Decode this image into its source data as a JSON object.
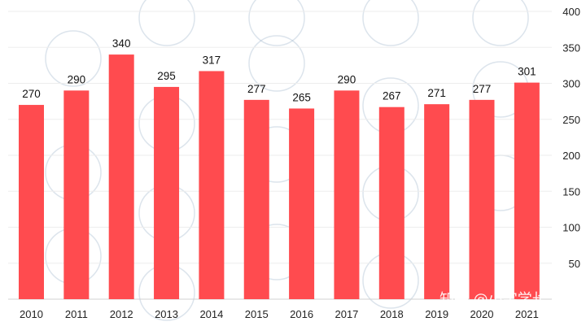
{
  "chart_data": {
    "type": "bar",
    "categories": [
      "2010",
      "2011",
      "2012",
      "2013",
      "2014",
      "2015",
      "2016",
      "2017",
      "2018",
      "2019",
      "2020",
      "2021"
    ],
    "values": [
      270,
      290,
      340,
      295,
      317,
      277,
      265,
      290,
      267,
      271,
      277,
      301
    ],
    "title": "",
    "xlabel": "",
    "ylabel": "",
    "ylim": [
      0,
      400
    ],
    "y_ticks": [
      50,
      100,
      150,
      200,
      250,
      300,
      350,
      400
    ],
    "y_axis_position": "right",
    "grid": true,
    "bar_color": "#ff4b4f",
    "data_labels": true
  },
  "watermark": {
    "text": "知乎 @小宇学长"
  }
}
